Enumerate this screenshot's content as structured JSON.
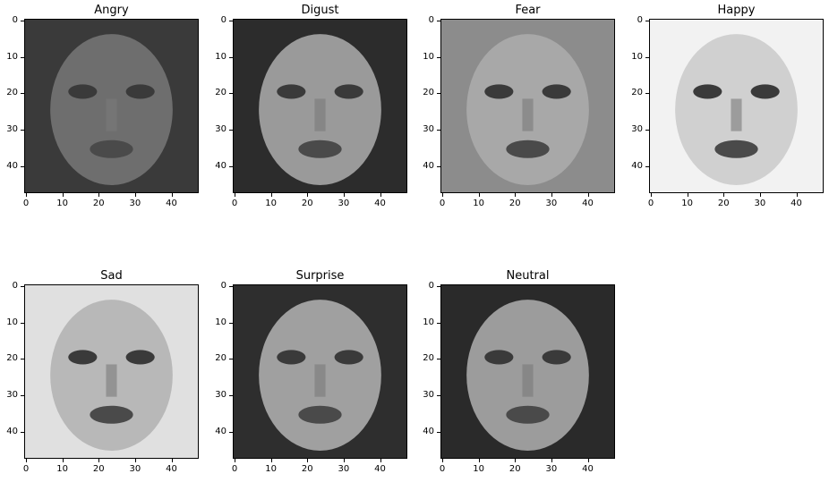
{
  "panels": [
    {
      "title": "Angry",
      "tone": "#6e6e6e",
      "bg": "#3a3a3a"
    },
    {
      "title": "Digust",
      "tone": "#9a9a9a",
      "bg": "#2c2c2c"
    },
    {
      "title": "Fear",
      "tone": "#a8a8a8",
      "bg": "#8c8c8c"
    },
    {
      "title": "Happy",
      "tone": "#d0d0d0",
      "bg": "#f2f2f2"
    },
    {
      "title": "Sad",
      "tone": "#b8b8b8",
      "bg": "#e0e0e0"
    },
    {
      "title": "Surprise",
      "tone": "#a0a0a0",
      "bg": "#2e2e2e"
    },
    {
      "title": "Neutral",
      "tone": "#9c9c9c",
      "bg": "#2a2a2a"
    }
  ],
  "ticks": {
    "y": [
      "0",
      "10",
      "20",
      "30",
      "40"
    ],
    "x": [
      "0",
      "10",
      "20",
      "30",
      "40"
    ]
  }
}
